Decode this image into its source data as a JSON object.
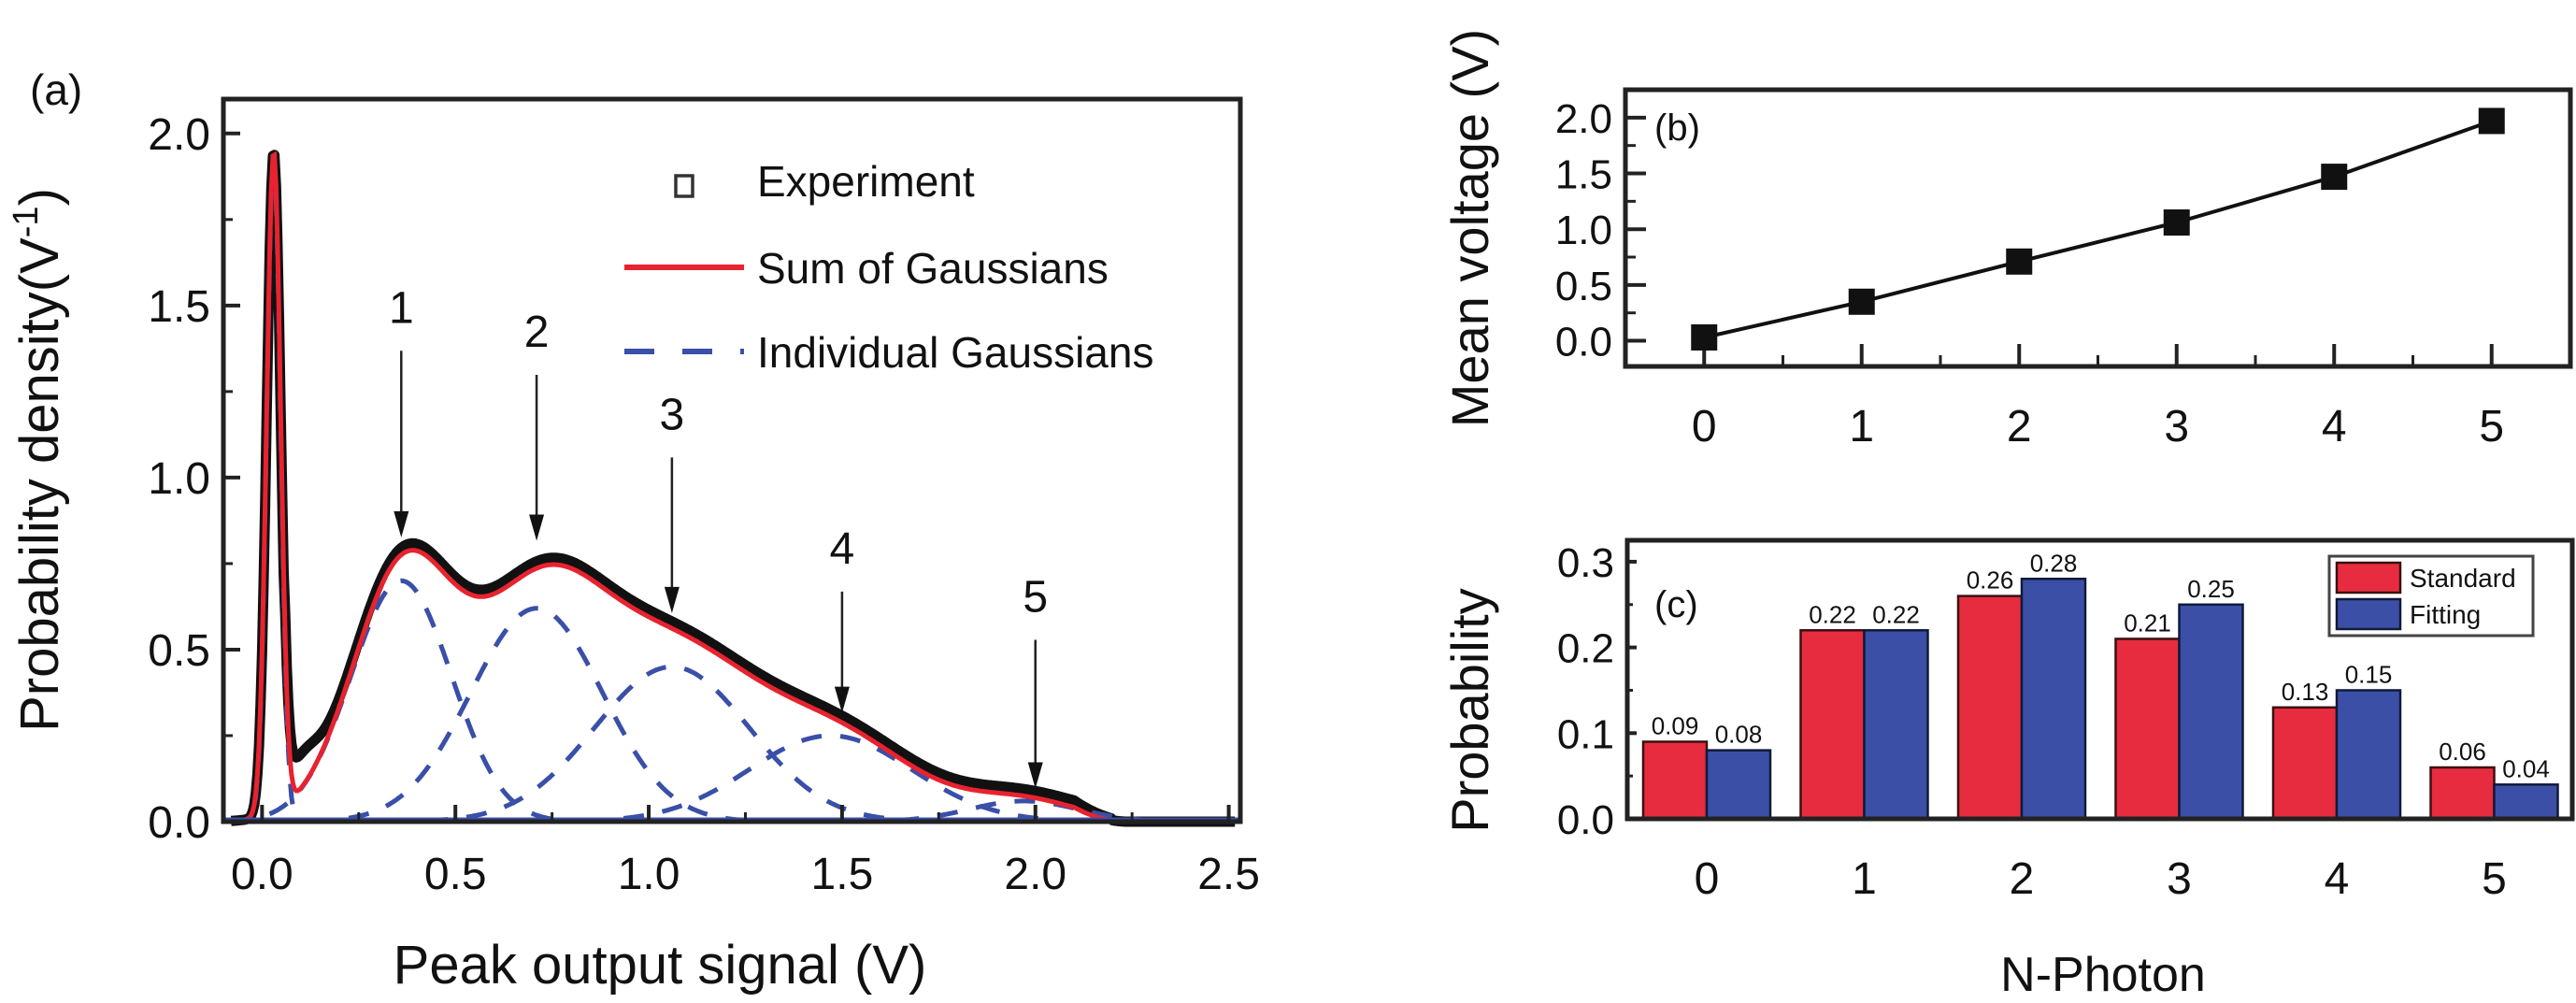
{
  "chart_data": [
    {
      "id": "a",
      "panel_label": "(a)",
      "type": "line",
      "title": "",
      "xlabel": "Peak output signal (V)",
      "ylabel_main": "Probability density(V",
      "ylabel_sup": "-1",
      "ylabel_close": ")",
      "xlim": [
        -0.1,
        2.53
      ],
      "ylim": [
        0,
        2.1
      ],
      "xticks": [
        0.0,
        0.5,
        1.0,
        1.5,
        2.0,
        2.5
      ],
      "xtick_labels": [
        "0.0",
        "0.5",
        "1.0",
        "1.5",
        "2.0",
        "2.5"
      ],
      "yticks": [
        0.0,
        0.5,
        1.0,
        1.5,
        2.0
      ],
      "ytick_labels": [
        "0.0",
        "0.5",
        "1.0",
        "1.5",
        "2.0"
      ],
      "legend": {
        "placement": "top-right",
        "entries": [
          {
            "label": "Experiment",
            "style": "open-square",
            "color": "#222222"
          },
          {
            "label": "Sum of Gaussians",
            "style": "solid-line",
            "color": "#e8232f"
          },
          {
            "label": "Individual Gaussians",
            "style": "dashed-line",
            "color": "#3a4fa8"
          }
        ]
      },
      "gaussians": [
        {
          "n": 0,
          "mean": 0.03,
          "sigma": 0.018,
          "amplitude": 1.92
        },
        {
          "n": 1,
          "mean": 0.36,
          "sigma": 0.13,
          "amplitude": 0.7
        },
        {
          "n": 2,
          "mean": 0.71,
          "sigma": 0.17,
          "amplitude": 0.62
        },
        {
          "n": 3,
          "mean": 1.06,
          "sigma": 0.2,
          "amplitude": 0.45
        },
        {
          "n": 4,
          "mean": 1.47,
          "sigma": 0.21,
          "amplitude": 0.25
        },
        {
          "n": 5,
          "mean": 1.97,
          "sigma": 0.14,
          "amplitude": 0.06
        }
      ],
      "experiment_offset_note": "experiment trace lies slightly above the sum curve",
      "peak_annotations": [
        {
          "label": "1",
          "x": 0.36,
          "y_tip": 0.81,
          "label_y": 1.45
        },
        {
          "label": "2",
          "x": 0.71,
          "y_tip": 0.8,
          "label_y": 1.38
        },
        {
          "label": "3",
          "x": 1.06,
          "y_tip": 0.59,
          "label_y": 1.14
        },
        {
          "label": "4",
          "x": 1.5,
          "y_tip": 0.3,
          "label_y": 0.75
        },
        {
          "label": "5",
          "x": 2.0,
          "y_tip": 0.08,
          "label_y": 0.61
        }
      ],
      "series_colors": {
        "experiment": "#111111",
        "sum": "#e8232f",
        "individual": "#3a4fa8"
      }
    },
    {
      "id": "b",
      "panel_label": "(b)",
      "type": "line",
      "title": "",
      "xlabel": "",
      "ylabel": "Mean voltage (V)",
      "xlim": [
        -0.5,
        5.5
      ],
      "ylim": [
        -0.23,
        2.25
      ],
      "xticks": [
        0,
        1,
        2,
        3,
        4,
        5
      ],
      "xtick_labels": [
        "0",
        "1",
        "2",
        "3",
        "4",
        "5"
      ],
      "yticks": [
        0.0,
        0.5,
        1.0,
        1.5,
        2.0
      ],
      "ytick_labels": [
        "0.0",
        "0.5",
        "1.0",
        "1.5",
        "2.0"
      ],
      "x": [
        0,
        1,
        2,
        3,
        4,
        5
      ],
      "y": [
        0.03,
        0.35,
        0.71,
        1.06,
        1.47,
        1.97
      ],
      "marker": "filled-square",
      "color": "#111111"
    },
    {
      "id": "c",
      "panel_label": "(c)",
      "type": "bar",
      "title": "",
      "xlabel": "N-Photon",
      "ylabel": "Probability",
      "categories": [
        "0",
        "1",
        "2",
        "3",
        "4",
        "5"
      ],
      "ylim": [
        0,
        0.325
      ],
      "yticks": [
        0.0,
        0.1,
        0.2,
        0.3
      ],
      "ytick_labels": [
        "0.0",
        "0.1",
        "0.2",
        "0.3"
      ],
      "series": [
        {
          "name": "Standard",
          "color": "#e82c40",
          "values": [
            0.09,
            0.22,
            0.26,
            0.21,
            0.13,
            0.06
          ],
          "labels": [
            "0.09",
            "0.22",
            "0.26",
            "0.21",
            "0.13",
            "0.06"
          ]
        },
        {
          "name": "Fitting",
          "color": "#3c4fa6",
          "values": [
            0.08,
            0.22,
            0.28,
            0.25,
            0.15,
            0.04
          ],
          "labels": [
            "0.08",
            "0.22",
            "0.28",
            "0.25",
            "0.15",
            "0.04"
          ]
        }
      ],
      "legend": {
        "placement": "top-right"
      }
    }
  ]
}
